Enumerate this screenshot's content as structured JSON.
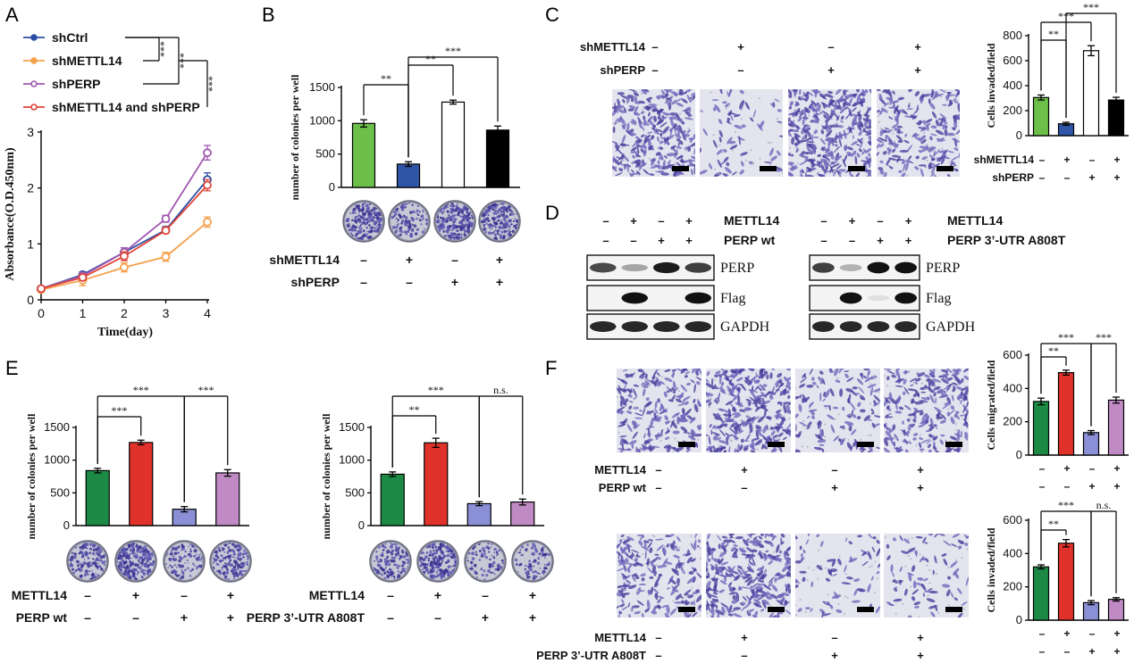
{
  "panels": {
    "A": "A",
    "B": "B",
    "C": "C",
    "D": "D",
    "E": "E",
    "F": "F"
  },
  "colors": {
    "shCtrl": "#2b4ea2",
    "shMETTL14": "#f4a14c",
    "shPERP": "#a058b0",
    "both": "#e0443a",
    "lightGreen": "#6cc04a",
    "blue": "#2f56a6",
    "darkGreen": "#1c8a45",
    "red": "#e0322b",
    "periwinkle": "#8a8fd6",
    "lavender": "#c08ac4",
    "stain": "#5a4fa8"
  },
  "chart_data": [
    {
      "panel": "A",
      "type": "line",
      "xlabel": "Time(day)",
      "ylabel": "Absorbance(O.D.450nm)",
      "x": [
        0,
        1,
        2,
        3,
        4
      ],
      "xlim": [
        0,
        4
      ],
      "ylim": [
        0,
        3
      ],
      "xticks": [
        "0",
        "1",
        "2",
        "3",
        "4"
      ],
      "yticks": [
        "0",
        "1",
        "2",
        "3"
      ],
      "series": [
        {
          "name": "shCtrl",
          "values": [
            0.2,
            0.45,
            0.85,
            1.25,
            2.15
          ],
          "err": [
            0.03,
            0.05,
            0.08,
            0.06,
            0.12
          ]
        },
        {
          "name": "shMETTL14",
          "values": [
            0.18,
            0.35,
            0.58,
            0.77,
            1.39
          ],
          "err": [
            0.03,
            0.1,
            0.08,
            0.08,
            0.09
          ]
        },
        {
          "name": "shPERP",
          "values": [
            0.2,
            0.43,
            0.85,
            1.45,
            2.63
          ],
          "err": [
            0.03,
            0.05,
            0.08,
            0.06,
            0.13
          ]
        },
        {
          "name": "shMETTL14 and shPERP",
          "values": [
            0.2,
            0.4,
            0.78,
            1.24,
            2.05
          ],
          "err": [
            0.03,
            0.05,
            0.08,
            0.05,
            0.1
          ]
        }
      ],
      "sig": [
        "***",
        "***",
        "***"
      ]
    },
    {
      "panel": "B",
      "type": "bar",
      "ylabel": "number of colonies per well",
      "ylim": [
        0,
        1500
      ],
      "yticks": [
        "0",
        "500",
        "1000",
        "1500"
      ],
      "values": [
        960,
        350,
        1280,
        860
      ],
      "err": [
        55,
        35,
        30,
        60
      ],
      "sig": [
        "**",
        "**",
        "***"
      ],
      "conditions": [
        {
          "label": "shMETTL14",
          "marks": [
            "–",
            "+",
            "–",
            "+"
          ]
        },
        {
          "label": "shPERP",
          "marks": [
            "–",
            "–",
            "+",
            "+"
          ]
        }
      ]
    },
    {
      "panel": "C",
      "type": "bar",
      "ylabel": "Cells invaded/field",
      "ylim": [
        0,
        800
      ],
      "yticks": [
        "0",
        "200",
        "400",
        "600",
        "800"
      ],
      "values": [
        305,
        95,
        680,
        285
      ],
      "err": [
        20,
        12,
        40,
        22
      ],
      "sig": [
        "**",
        "***",
        "***"
      ],
      "top_conditions": [
        {
          "label": "shMETTL14",
          "marks": [
            "–",
            "+",
            "–",
            "+"
          ]
        },
        {
          "label": "shPERP",
          "marks": [
            "–",
            "–",
            "+",
            "+"
          ]
        }
      ],
      "conditions": [
        {
          "label": "shMETTL14",
          "marks": [
            "–",
            "+",
            "–",
            "+"
          ]
        },
        {
          "label": "shPERP",
          "marks": [
            "–",
            "–",
            "+",
            "+"
          ]
        }
      ]
    },
    {
      "panel": "E-left",
      "type": "bar",
      "ylabel": "number of colonies per well",
      "ylim": [
        0,
        1500
      ],
      "yticks": [
        "0",
        "500",
        "1000",
        "1500"
      ],
      "values": [
        840,
        1270,
        250,
        805
      ],
      "err": [
        35,
        35,
        40,
        50
      ],
      "sig": [
        "***",
        "***",
        "***"
      ],
      "conditions": [
        {
          "label": "METTL14",
          "marks": [
            "–",
            "+",
            "–",
            "+"
          ]
        },
        {
          "label": "PERP wt",
          "marks": [
            "–",
            "–",
            "+",
            "+"
          ]
        }
      ]
    },
    {
      "panel": "E-right",
      "type": "bar",
      "ylabel": "number of colonies per well",
      "ylim": [
        0,
        1500
      ],
      "yticks": [
        "0",
        "500",
        "1000",
        "1500"
      ],
      "values": [
        785,
        1265,
        335,
        360
      ],
      "err": [
        35,
        70,
        30,
        45
      ],
      "sig": [
        "**",
        "***",
        "n.s."
      ],
      "conditions": [
        {
          "label": "METTL14",
          "marks": [
            "–",
            "+",
            "–",
            "+"
          ]
        },
        {
          "label": "PERP 3’-UTR A808T",
          "marks": [
            "–",
            "–",
            "+",
            "+"
          ]
        }
      ]
    },
    {
      "panel": "F-top",
      "type": "bar",
      "ylabel": "Cells migrated/field",
      "ylim": [
        0,
        600
      ],
      "yticks": [
        "0",
        "200",
        "400",
        "600"
      ],
      "values": [
        322,
        495,
        135,
        330
      ],
      "err": [
        20,
        15,
        12,
        18
      ],
      "sig": [
        "**",
        "***",
        "***"
      ],
      "top_conditions": [
        {
          "label": "METTL14",
          "marks": [
            "–",
            "+",
            "–",
            "+"
          ]
        },
        {
          "label": "PERP wt",
          "marks": [
            "–",
            "–",
            "+",
            "+"
          ]
        }
      ],
      "conditions": [
        {
          "label": "",
          "marks": [
            "–",
            "+",
            "–",
            "+"
          ]
        },
        {
          "label": "",
          "marks": [
            "–",
            "–",
            "+",
            "+"
          ]
        }
      ]
    },
    {
      "panel": "F-bottom",
      "type": "bar",
      "ylabel": "Cells invaded/field",
      "ylim": [
        0,
        600
      ],
      "yticks": [
        "0",
        "200",
        "400",
        "600"
      ],
      "values": [
        320,
        462,
        105,
        125
      ],
      "err": [
        12,
        22,
        12,
        10
      ],
      "sig": [
        "**",
        "***",
        "n.s."
      ],
      "top_conditions": [
        {
          "label": "METTL14",
          "marks": [
            "–",
            "+",
            "–",
            "+"
          ]
        },
        {
          "label": "PERP 3’-UTR A808T",
          "marks": [
            "–",
            "–",
            "+",
            "+"
          ]
        }
      ],
      "conditions": [
        {
          "label": "",
          "marks": [
            "–",
            "+",
            "–",
            "+"
          ]
        },
        {
          "label": "",
          "marks": [
            "–",
            "–",
            "+",
            "+"
          ]
        }
      ]
    }
  ],
  "western": [
    {
      "conditions": [
        {
          "label": "METTL14",
          "marks": [
            "–",
            "+",
            "–",
            "+"
          ]
        },
        {
          "label": "PERP wt",
          "marks": [
            "–",
            "–",
            "+",
            "+"
          ]
        }
      ],
      "bands": [
        {
          "label": "PERP",
          "intensity": [
            0.7,
            0.3,
            0.9,
            0.75
          ]
        },
        {
          "label": "Flag",
          "intensity": [
            0.0,
            0.95,
            0.0,
            0.95
          ]
        },
        {
          "label": "GAPDH",
          "intensity": [
            0.85,
            0.85,
            0.85,
            0.85
          ]
        }
      ]
    },
    {
      "conditions": [
        {
          "label": "METTL14",
          "marks": [
            "–",
            "+",
            "–",
            "+"
          ]
        },
        {
          "label": "PERP 3’-UTR A808T",
          "marks": [
            "–",
            "–",
            "+",
            "+"
          ]
        }
      ],
      "bands": [
        {
          "label": "PERP",
          "intensity": [
            0.75,
            0.25,
            0.95,
            0.95
          ]
        },
        {
          "label": "Flag",
          "intensity": [
            0.0,
            0.95,
            0.05,
            0.95
          ]
        },
        {
          "label": "GAPDH",
          "intensity": [
            0.85,
            0.85,
            0.85,
            0.85
          ]
        }
      ]
    }
  ],
  "micrographs": {
    "C": [
      0.75,
      0.12,
      0.95,
      0.55
    ],
    "F-top": [
      0.55,
      0.85,
      0.3,
      0.6
    ],
    "F-bottom": [
      0.5,
      0.8,
      0.12,
      0.15
    ]
  },
  "colony_density": {
    "B": [
      0.7,
      0.3,
      0.85,
      0.6
    ],
    "E-left": [
      0.5,
      0.9,
      0.25,
      0.55
    ],
    "E-right": [
      0.45,
      0.85,
      0.2,
      0.2
    ]
  }
}
